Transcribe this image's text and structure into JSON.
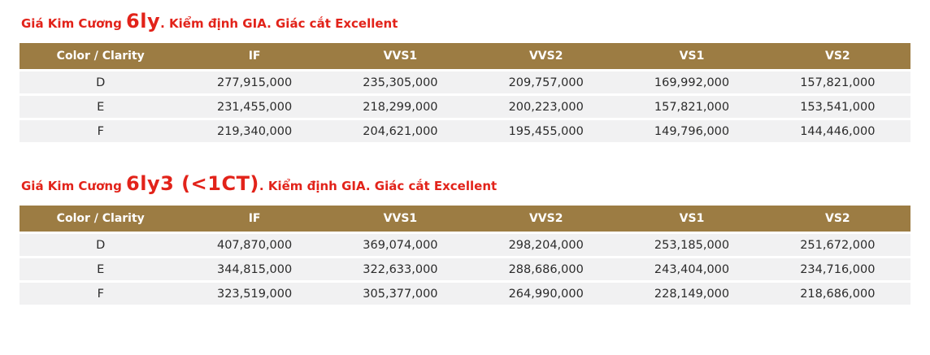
{
  "colors": {
    "title_red": "#e2231a",
    "header_brown": "#9c7c43",
    "row_gray": "#f1f1f2",
    "cell_text": "#2b2b2b"
  },
  "sections": [
    {
      "title": {
        "prefix": "Giá Kim Cương ",
        "highlight": "6ly",
        "suffix": ". Kiểm định GIA. Giác cắt Excellent"
      },
      "table": {
        "headers": [
          "Color / Clarity",
          "IF",
          "VVS1",
          "VVS2",
          "VS1",
          "VS2"
        ],
        "rows": [
          {
            "label": "D",
            "values": [
              "277,915,000",
              "235,305,000",
              "209,757,000",
              "169,992,000",
              "157,821,000"
            ]
          },
          {
            "label": "E",
            "values": [
              "231,455,000",
              "218,299,000",
              "200,223,000",
              "157,821,000",
              "153,541,000"
            ]
          },
          {
            "label": "F",
            "values": [
              "219,340,000",
              "204,621,000",
              "195,455,000",
              "149,796,000",
              "144,446,000"
            ]
          }
        ]
      }
    },
    {
      "title": {
        "prefix": "Giá Kim Cương ",
        "highlight": "6ly3 (<1CT)",
        "suffix": ". Kiểm định GIA. Giác cắt Excellent"
      },
      "table": {
        "headers": [
          "Color / Clarity",
          "IF",
          "VVS1",
          "VVS2",
          "VS1",
          "VS2"
        ],
        "rows": [
          {
            "label": "D",
            "values": [
              "407,870,000",
              "369,074,000",
              "298,204,000",
              "253,185,000",
              "251,672,000"
            ]
          },
          {
            "label": "E",
            "values": [
              "344,815,000",
              "322,633,000",
              "288,686,000",
              "243,404,000",
              "234,716,000"
            ]
          },
          {
            "label": "F",
            "values": [
              "323,519,000",
              "305,377,000",
              "264,990,000",
              "228,149,000",
              "218,686,000"
            ]
          }
        ]
      }
    }
  ]
}
